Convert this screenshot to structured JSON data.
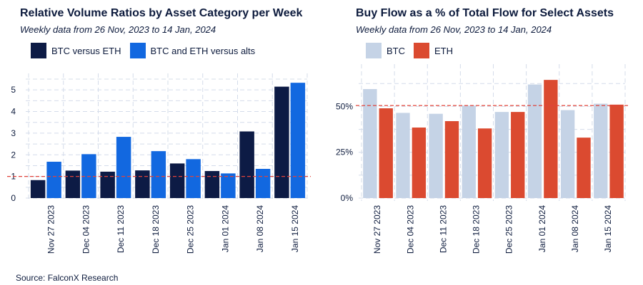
{
  "source": "Source: FalconX Research",
  "chart_data": [
    {
      "type": "bar",
      "title": "Relative Volume Ratios by Asset Category per Week",
      "subtitle": "Weekly data from 26 Nov, 2023 to 14 Jan, 2024",
      "categories": [
        "Nov 27 2023",
        "Dec 04 2023",
        "Dec 11 2023",
        "Dec 18 2023",
        "Dec 25 2023",
        "Jan 01 2024",
        "Jan 08 2024",
        "Jan 15 2024"
      ],
      "series": [
        {
          "name": "BTC versus ETH",
          "color": "#0d1b45",
          "values": [
            0.83,
            1.27,
            1.22,
            1.28,
            1.6,
            1.25,
            3.08,
            5.15
          ]
        },
        {
          "name": "BTC and ETH versus alts",
          "color": "#1268e0",
          "values": [
            1.68,
            2.03,
            2.83,
            2.17,
            1.8,
            1.14,
            1.35,
            5.33
          ]
        }
      ],
      "yticks": [
        "0",
        "1",
        "2",
        "3",
        "4",
        "5"
      ],
      "ylim": [
        0,
        5.5
      ],
      "reference_line": {
        "value": 1,
        "style": "dashed",
        "color": "#e0433a"
      },
      "legend_position": "top-left",
      "grid": true
    },
    {
      "type": "bar",
      "title": "Buy Flow as a % of Total Flow for Select Assets",
      "subtitle": "Weekly data from 26 Nov, 2023 to 14 Jan, 2024",
      "categories": [
        "Nov 27 2023",
        "Dec 04 2023",
        "Dec 11 2023",
        "Dec 18 2023",
        "Dec 25 2023",
        "Jan 01 2024",
        "Jan 08 2024",
        "Jan 15 2024"
      ],
      "series": [
        {
          "name": "BTC",
          "color": "#c5d3e6",
          "values": [
            59.5,
            46.5,
            46,
            50.5,
            47,
            62,
            48,
            51.5
          ]
        },
        {
          "name": "ETH",
          "color": "#db4a30",
          "values": [
            49,
            38.5,
            42,
            38,
            47,
            64.5,
            33,
            51
          ]
        }
      ],
      "yticks": [
        "0%",
        "25%",
        "50%"
      ],
      "ylim": [
        0,
        70
      ],
      "reference_line": {
        "value": 50.5,
        "style": "dashed",
        "color": "#e0433a"
      },
      "legend_position": "top-left",
      "grid": true
    }
  ]
}
